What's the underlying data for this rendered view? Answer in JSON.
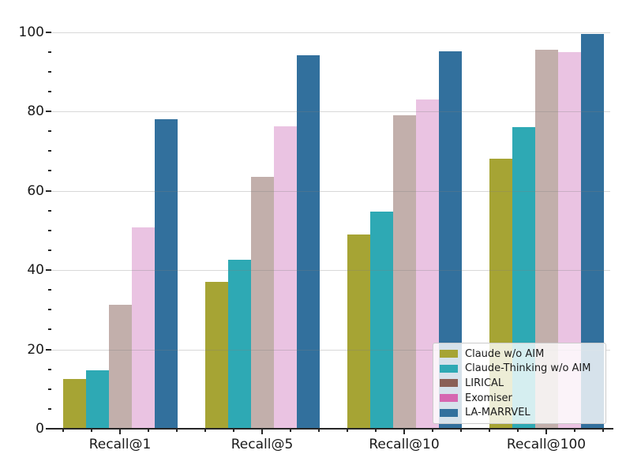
{
  "figure": {
    "background": "#ffffff",
    "text_color": "#1a1a1a",
    "spine_color": "#262626",
    "grid_color": "#d9d9d9",
    "legend_border_color": "#cbcbcb"
  },
  "chart_data": {
    "type": "bar",
    "title": "",
    "xlabel": "",
    "ylabel": "",
    "categories": [
      "Recall@1",
      "Recall@5",
      "Recall@10",
      "Recall@100"
    ],
    "series": [
      {
        "name": "Claude w/o AIM",
        "bar_color": "#a6a434",
        "legend_color": "#a6a434",
        "values": [
          12.6,
          37.0,
          49.0,
          68.0
        ]
      },
      {
        "name": "Claude-Thinking w/o AIM",
        "bar_color": "#2ea9b4",
        "legend_color": "#2ea9b4",
        "values": [
          14.7,
          42.5,
          54.7,
          76.1
        ]
      },
      {
        "name": "LIRICAL",
        "bar_color": "#c2afab",
        "legend_color": "#8a5f55",
        "values": [
          31.2,
          63.5,
          79.0,
          95.5
        ]
      },
      {
        "name": "Exomiser",
        "bar_color": "#eac3e2",
        "legend_color": "#d667b1",
        "values": [
          50.7,
          76.2,
          83.0,
          95.0
        ]
      },
      {
        "name": "LA-MARRVEL",
        "bar_color": "#32709d",
        "legend_color": "#32709d",
        "values": [
          78.0,
          94.2,
          95.1,
          99.5
        ]
      }
    ],
    "ylim": [
      0,
      105
    ],
    "yticks": [
      0,
      20,
      40,
      60,
      80,
      100
    ],
    "yticklabels": [
      "0",
      "20",
      "40",
      "60",
      "80",
      "100"
    ],
    "y_minor_step": 5,
    "grid": "horizontal-major",
    "legend_position": "lower-right"
  }
}
